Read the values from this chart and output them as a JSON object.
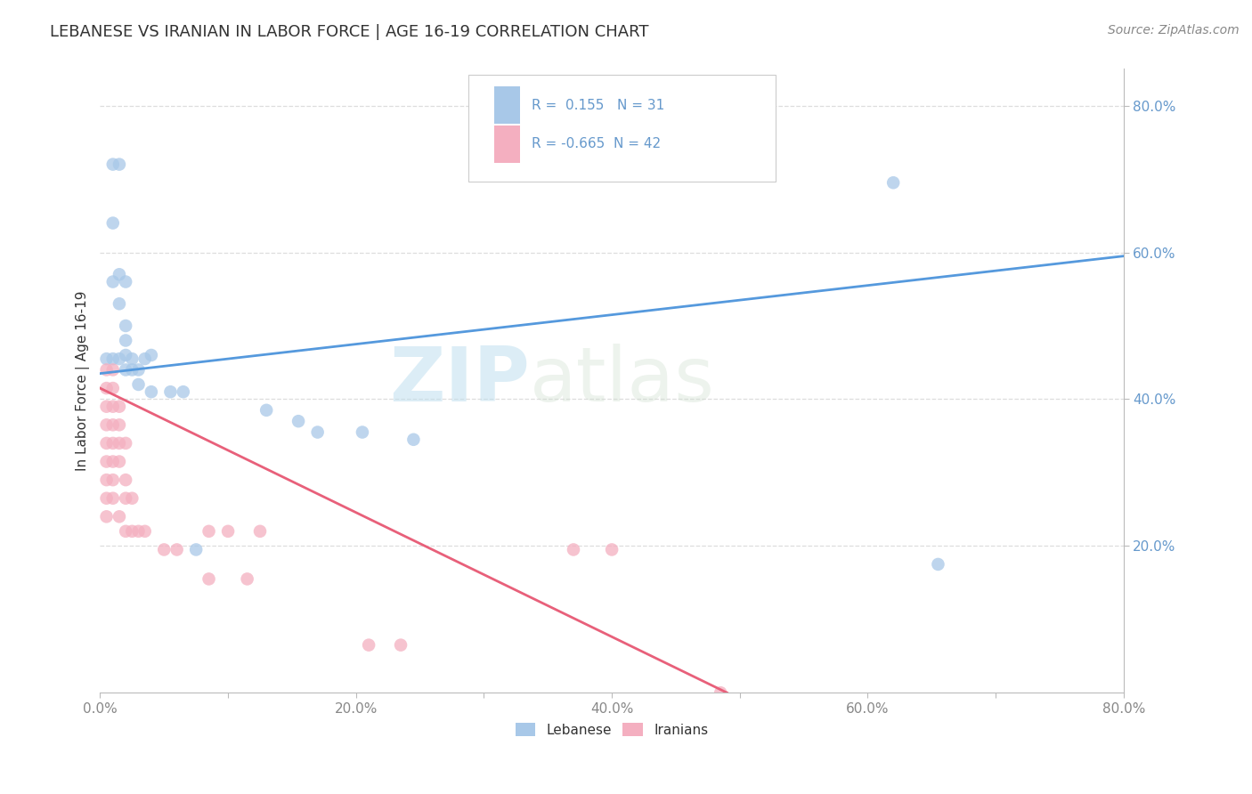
{
  "title": "LEBANESE VS IRANIAN IN LABOR FORCE | AGE 16-19 CORRELATION CHART",
  "source": "Source: ZipAtlas.com",
  "ylabel": "In Labor Force | Age 16-19",
  "xlim": [
    0.0,
    0.8
  ],
  "ylim": [
    0.0,
    0.85
  ],
  "xtick_labels": [
    "0.0%",
    "",
    "20.0%",
    "",
    "40.0%",
    "",
    "60.0%",
    "",
    "80.0%"
  ],
  "xtick_vals": [
    0.0,
    0.1,
    0.2,
    0.3,
    0.4,
    0.5,
    0.6,
    0.7,
    0.8
  ],
  "ytick_labels": [
    "20.0%",
    "40.0%",
    "60.0%",
    "80.0%"
  ],
  "ytick_vals": [
    0.2,
    0.4,
    0.6,
    0.8
  ],
  "legend_R1": "R =  0.155",
  "legend_N1": "N = 31",
  "legend_R2": "R = -0.665",
  "legend_N2": "N = 42",
  "blue_color": "#a8c8e8",
  "pink_color": "#f4afc0",
  "line_blue": "#5599dd",
  "line_pink": "#e8607a",
  "watermark_zip": "ZIP",
  "watermark_atlas": "atlas",
  "title_color": "#333333",
  "source_color": "#888888",
  "ytick_color": "#6699cc",
  "xtick_color": "#888888",
  "axis_color": "#bbbbbb",
  "grid_color": "#dddddd",
  "blue_scatter": [
    [
      0.01,
      0.72
    ],
    [
      0.015,
      0.72
    ],
    [
      0.01,
      0.64
    ],
    [
      0.01,
      0.56
    ],
    [
      0.015,
      0.57
    ],
    [
      0.02,
      0.56
    ],
    [
      0.015,
      0.53
    ],
    [
      0.02,
      0.5
    ],
    [
      0.02,
      0.48
    ],
    [
      0.02,
      0.46
    ],
    [
      0.025,
      0.455
    ],
    [
      0.005,
      0.455
    ],
    [
      0.01,
      0.455
    ],
    [
      0.015,
      0.455
    ],
    [
      0.02,
      0.44
    ],
    [
      0.025,
      0.44
    ],
    [
      0.03,
      0.44
    ],
    [
      0.035,
      0.455
    ],
    [
      0.04,
      0.46
    ],
    [
      0.03,
      0.42
    ],
    [
      0.04,
      0.41
    ],
    [
      0.055,
      0.41
    ],
    [
      0.065,
      0.41
    ],
    [
      0.13,
      0.385
    ],
    [
      0.155,
      0.37
    ],
    [
      0.17,
      0.355
    ],
    [
      0.205,
      0.355
    ],
    [
      0.245,
      0.345
    ],
    [
      0.075,
      0.195
    ],
    [
      0.62,
      0.695
    ],
    [
      0.655,
      0.175
    ]
  ],
  "pink_scatter": [
    [
      0.005,
      0.44
    ],
    [
      0.01,
      0.44
    ],
    [
      0.005,
      0.415
    ],
    [
      0.01,
      0.415
    ],
    [
      0.005,
      0.39
    ],
    [
      0.01,
      0.39
    ],
    [
      0.015,
      0.39
    ],
    [
      0.005,
      0.365
    ],
    [
      0.01,
      0.365
    ],
    [
      0.015,
      0.365
    ],
    [
      0.005,
      0.34
    ],
    [
      0.01,
      0.34
    ],
    [
      0.015,
      0.34
    ],
    [
      0.02,
      0.34
    ],
    [
      0.005,
      0.315
    ],
    [
      0.01,
      0.315
    ],
    [
      0.015,
      0.315
    ],
    [
      0.005,
      0.29
    ],
    [
      0.01,
      0.29
    ],
    [
      0.02,
      0.29
    ],
    [
      0.005,
      0.265
    ],
    [
      0.01,
      0.265
    ],
    [
      0.02,
      0.265
    ],
    [
      0.025,
      0.265
    ],
    [
      0.005,
      0.24
    ],
    [
      0.015,
      0.24
    ],
    [
      0.02,
      0.22
    ],
    [
      0.025,
      0.22
    ],
    [
      0.03,
      0.22
    ],
    [
      0.035,
      0.22
    ],
    [
      0.05,
      0.195
    ],
    [
      0.06,
      0.195
    ],
    [
      0.085,
      0.22
    ],
    [
      0.1,
      0.22
    ],
    [
      0.125,
      0.22
    ],
    [
      0.085,
      0.155
    ],
    [
      0.115,
      0.155
    ],
    [
      0.37,
      0.195
    ],
    [
      0.4,
      0.195
    ],
    [
      0.21,
      0.065
    ],
    [
      0.235,
      0.065
    ],
    [
      0.485,
      0.0
    ]
  ],
  "blue_line_x": [
    0.0,
    0.8
  ],
  "blue_line_y": [
    0.435,
    0.595
  ],
  "pink_line_x": [
    0.0,
    0.49
  ],
  "pink_line_y": [
    0.415,
    0.0
  ]
}
